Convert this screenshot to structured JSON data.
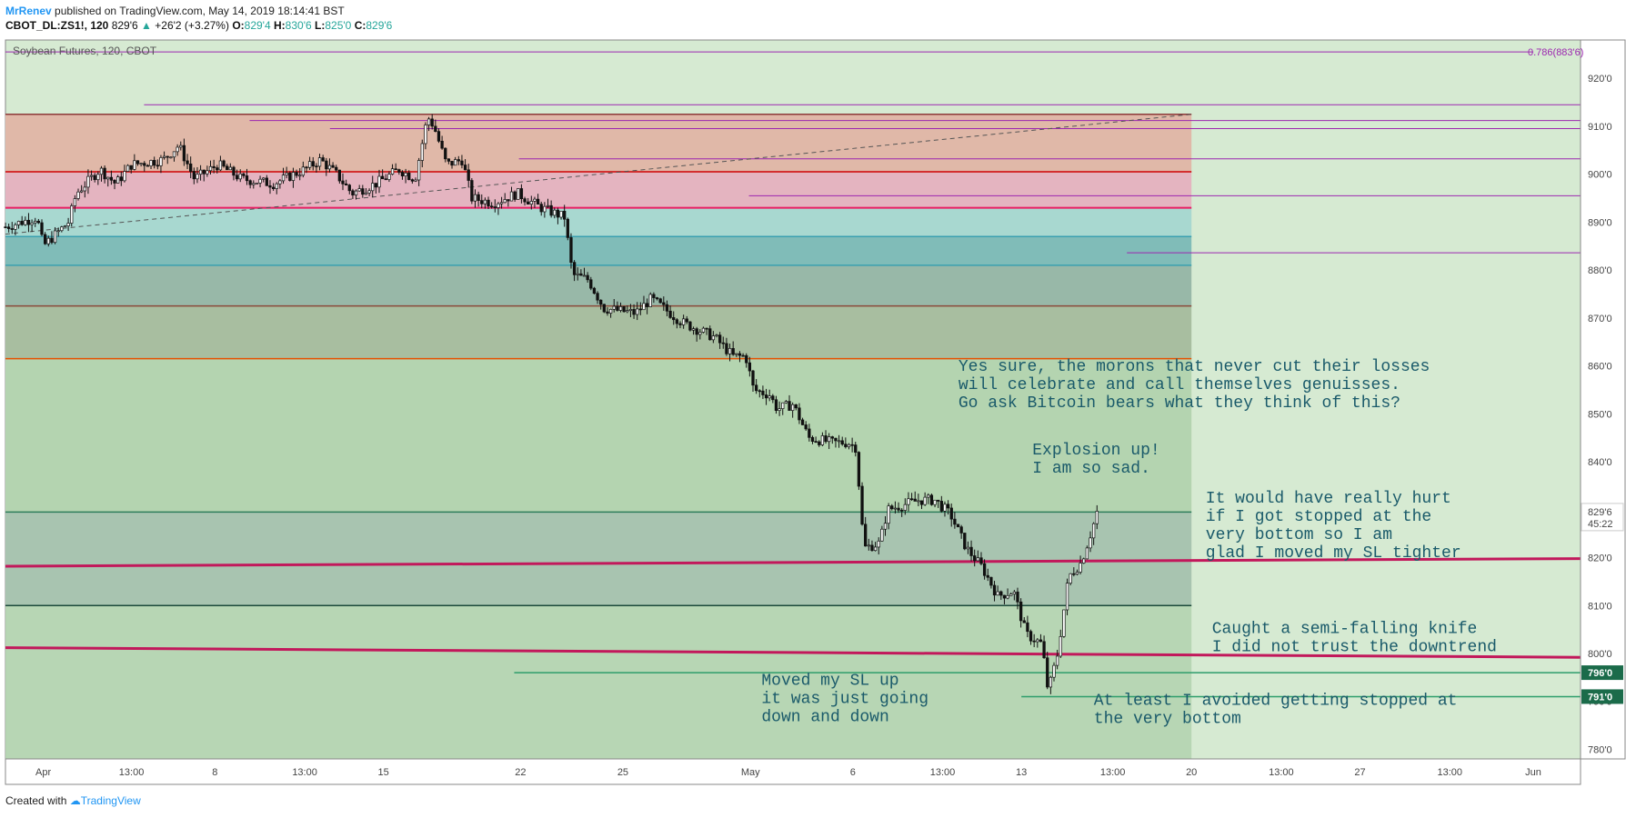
{
  "header": {
    "author": "MrRenev",
    "published": "published on TradingView.com, May 14, 2019 18:14:41 BST",
    "symbol": "CBOT_DL:ZS1!, 120",
    "last": "829'6",
    "change": "+26'2 (+3.27%)",
    "o_label": "O:",
    "o_val": "829'4",
    "h_label": "H:",
    "h_val": "830'6",
    "l_label": "L:",
    "l_val": "825'0",
    "c_label": "C:",
    "c_val": "829'6"
  },
  "footer": {
    "created": "Created with",
    "brand": "TradingView"
  },
  "colors": {
    "bg": "#d6ead2",
    "zone_top": "#e0b8a8",
    "zone_pink": "#e4b4c0",
    "zone_teal_light": "#a8d8d0",
    "zone_teal": "#80bcb8",
    "zone_grey_teal": "#98b8a8",
    "zone_olive": "#a8bea0",
    "zone_green": "#b4d4b0",
    "zone_low": "#a8c4b0",
    "magenta": "#c2185b",
    "purple": "#9c27b0",
    "red": "#d32f2f",
    "green_line": "#2e7d5b",
    "candle": "#111111",
    "annotation": "#1a5a6a"
  },
  "chart_data": {
    "type": "candlestick",
    "title": "Soybean Futures, 120, CBOT",
    "price_unit": "cents (fractional eighths, e.g. 829'6)",
    "ylim": [
      778,
      928
    ],
    "y_ticks": [
      "920'0",
      "910'0",
      "900'0",
      "890'0",
      "880'0",
      "870'0",
      "860'0",
      "850'0",
      "840'0",
      "830'0",
      "820'0",
      "810'0",
      "800'0",
      "790'0",
      "780'0"
    ],
    "y_tick_values": [
      920,
      910,
      900,
      890,
      880,
      870,
      860,
      850,
      840,
      830,
      820,
      810,
      800,
      790,
      780
    ],
    "x_ticks": [
      "Apr",
      "13:00",
      "8",
      "13:00",
      "15",
      "22",
      "25",
      "May",
      "6",
      "13:00",
      "13",
      "13:00",
      "20",
      "13:00",
      "27",
      "13:00",
      "Jun"
    ],
    "x_tick_pos": [
      0.024,
      0.08,
      0.133,
      0.19,
      0.24,
      0.327,
      0.392,
      0.473,
      0.538,
      0.595,
      0.645,
      0.703,
      0.753,
      0.81,
      0.86,
      0.917,
      0.97
    ],
    "last_price_label": "829'6",
    "countdown_label": "45:22",
    "price_labels": [
      {
        "text": "796'0",
        "value": 796
      },
      {
        "text": "791'0",
        "value": 791
      }
    ],
    "fib_label": "0.786(883'6)",
    "fib_value": 925.5,
    "zones": [
      {
        "from": 912.5,
        "to": 900.5,
        "color": "zone_top"
      },
      {
        "from": 900.5,
        "to": 893,
        "color": "zone_pink"
      },
      {
        "from": 893,
        "to": 887,
        "color": "zone_teal_light"
      },
      {
        "from": 887,
        "to": 881,
        "color": "zone_teal"
      },
      {
        "from": 881,
        "to": 872.5,
        "color": "zone_grey_teal"
      },
      {
        "from": 872.5,
        "to": 861.5,
        "color": "zone_olive"
      },
      {
        "from": 861.5,
        "to": 829.5,
        "color": "zone_green"
      },
      {
        "from": 829.5,
        "to": 810,
        "color": "zone_low"
      }
    ],
    "zone_end_x": 0.753,
    "hlines": [
      {
        "value": 912.5,
        "color": "#8b3a3a",
        "width": 1.5,
        "x0": 0,
        "x1": 0.753
      },
      {
        "value": 900.5,
        "color": "#d32f2f",
        "width": 2,
        "x0": 0,
        "x1": 0.753
      },
      {
        "value": 893,
        "color": "#e91e63",
        "width": 2,
        "x0": 0,
        "x1": 0.753
      },
      {
        "value": 887,
        "color": "#3aa0b0",
        "width": 1.5,
        "x0": 0,
        "x1": 0.753
      },
      {
        "value": 881,
        "color": "#3aa0b0",
        "width": 1.5,
        "x0": 0,
        "x1": 0.753
      },
      {
        "value": 872.5,
        "color": "#8b4a3a",
        "width": 1.5,
        "x0": 0,
        "x1": 0.753
      },
      {
        "value": 861.5,
        "color": "#e65100",
        "width": 1.5,
        "x0": 0,
        "x1": 0.753
      },
      {
        "value": 829.5,
        "color": "#2e7d5b",
        "width": 1.5,
        "x0": 0,
        "x1": 0.753
      },
      {
        "value": 810,
        "color": "#1b4a3a",
        "width": 1.5,
        "x0": 0,
        "x1": 0.753
      },
      {
        "value": 796,
        "color": "#2e9d6b",
        "width": 1.5,
        "x0": 0.323,
        "x1": 1.0
      },
      {
        "value": 791,
        "color": "#2e9d6b",
        "width": 1.5,
        "x0": 0.645,
        "x1": 1.0
      },
      {
        "value": 925.5,
        "color": "#9c27b0",
        "width": 1,
        "x0": 0,
        "x1": 0.97
      },
      {
        "value": 914.5,
        "color": "#9c27b0",
        "width": 1,
        "x0": 0.088,
        "x1": 1.0
      },
      {
        "value": 911.2,
        "color": "#9c27b0",
        "width": 1,
        "x0": 0.155,
        "x1": 1.0
      },
      {
        "value": 909.5,
        "color": "#9c27b0",
        "width": 1,
        "x0": 0.206,
        "x1": 1.0
      },
      {
        "value": 903.2,
        "color": "#9c27b0",
        "width": 1,
        "x0": 0.326,
        "x1": 1.0
      },
      {
        "value": 895.5,
        "color": "#9c27b0",
        "width": 1,
        "x0": 0.472,
        "x1": 1.0
      },
      {
        "value": 883.6,
        "color": "#9c27b0",
        "width": 1,
        "x0": 0.712,
        "x1": 1.0
      }
    ],
    "trend_lines": [
      {
        "x0": 0,
        "v0": 818.2,
        "x1": 1.0,
        "v1": 819.8,
        "color": "#c2185b",
        "width": 3
      },
      {
        "x0": 0,
        "v0": 801.2,
        "x1": 1.0,
        "v1": 799.2,
        "color": "#c2185b",
        "width": 3
      },
      {
        "x0": 0,
        "v0": 887.5,
        "x1": 0.753,
        "v1": 912.5,
        "color": "#555555",
        "width": 1,
        "dash": true
      }
    ],
    "candle_path": [
      [
        0.0,
        889
      ],
      [
        0.02,
        891
      ],
      [
        0.024,
        885
      ],
      [
        0.04,
        890
      ],
      [
        0.045,
        896
      ],
      [
        0.06,
        901
      ],
      [
        0.07,
        898
      ],
      [
        0.08,
        902
      ],
      [
        0.1,
        903
      ],
      [
        0.11,
        906
      ],
      [
        0.12,
        899
      ],
      [
        0.135,
        902
      ],
      [
        0.15,
        899
      ],
      [
        0.17,
        898
      ],
      [
        0.19,
        901
      ],
      [
        0.2,
        903
      ],
      [
        0.21,
        900
      ],
      [
        0.22,
        896
      ],
      [
        0.235,
        898
      ],
      [
        0.25,
        901
      ],
      [
        0.26,
        899
      ],
      [
        0.268,
        912
      ],
      [
        0.272,
        910
      ],
      [
        0.28,
        902
      ],
      [
        0.29,
        903
      ],
      [
        0.296,
        895
      ],
      [
        0.31,
        894
      ],
      [
        0.325,
        896
      ],
      [
        0.34,
        893
      ],
      [
        0.355,
        891
      ],
      [
        0.36,
        879
      ],
      [
        0.37,
        878
      ],
      [
        0.38,
        872
      ],
      [
        0.4,
        871
      ],
      [
        0.41,
        874
      ],
      [
        0.43,
        869
      ],
      [
        0.45,
        866
      ],
      [
        0.462,
        862
      ],
      [
        0.47,
        862
      ],
      [
        0.475,
        855
      ],
      [
        0.485,
        854
      ],
      [
        0.49,
        851
      ],
      [
        0.5,
        852
      ],
      [
        0.51,
        845
      ],
      [
        0.525,
        844
      ],
      [
        0.535,
        844
      ],
      [
        0.54,
        843
      ],
      [
        0.545,
        822
      ],
      [
        0.555,
        823
      ],
      [
        0.56,
        830
      ],
      [
        0.57,
        831
      ],
      [
        0.58,
        832
      ],
      [
        0.59,
        832
      ],
      [
        0.6,
        829
      ],
      [
        0.61,
        822
      ],
      [
        0.62,
        818
      ],
      [
        0.63,
        812
      ],
      [
        0.64,
        813
      ],
      [
        0.648,
        804
      ],
      [
        0.658,
        802
      ],
      [
        0.662,
        792
      ],
      [
        0.668,
        800
      ],
      [
        0.675,
        816
      ],
      [
        0.683,
        819
      ],
      [
        0.69,
        826
      ],
      [
        0.693,
        829.5
      ]
    ],
    "annotations": [
      {
        "text": [
          "Yes sure, the morons that never cut their losses",
          "will celebrate and call themselves genuisses.",
          "Go ask Bitcoin bears what they think of this?"
        ],
        "x": 0.605,
        "value": 859
      },
      {
        "text": [
          "Explosion up!",
          "I am so sad."
        ],
        "x": 0.652,
        "value": 841.5
      },
      {
        "text": [
          "It would have really hurt",
          "if I got stopped at the",
          "very bottom so I am",
          "glad I moved my SL tighter"
        ],
        "x": 0.762,
        "value": 831.5
      },
      {
        "text": [
          "Caught a semi-falling knife",
          " I did not trust the downtrend"
        ],
        "x": 0.766,
        "value": 804.3
      },
      {
        "text": [
          "Moved my SL up",
          "it was just going",
          "down and down"
        ],
        "x": 0.48,
        "value": 793.5
      },
      {
        "text": [
          "At least I avoided getting stopped at",
          "the very bottom"
        ],
        "x": 0.691,
        "value": 789.3
      }
    ]
  }
}
